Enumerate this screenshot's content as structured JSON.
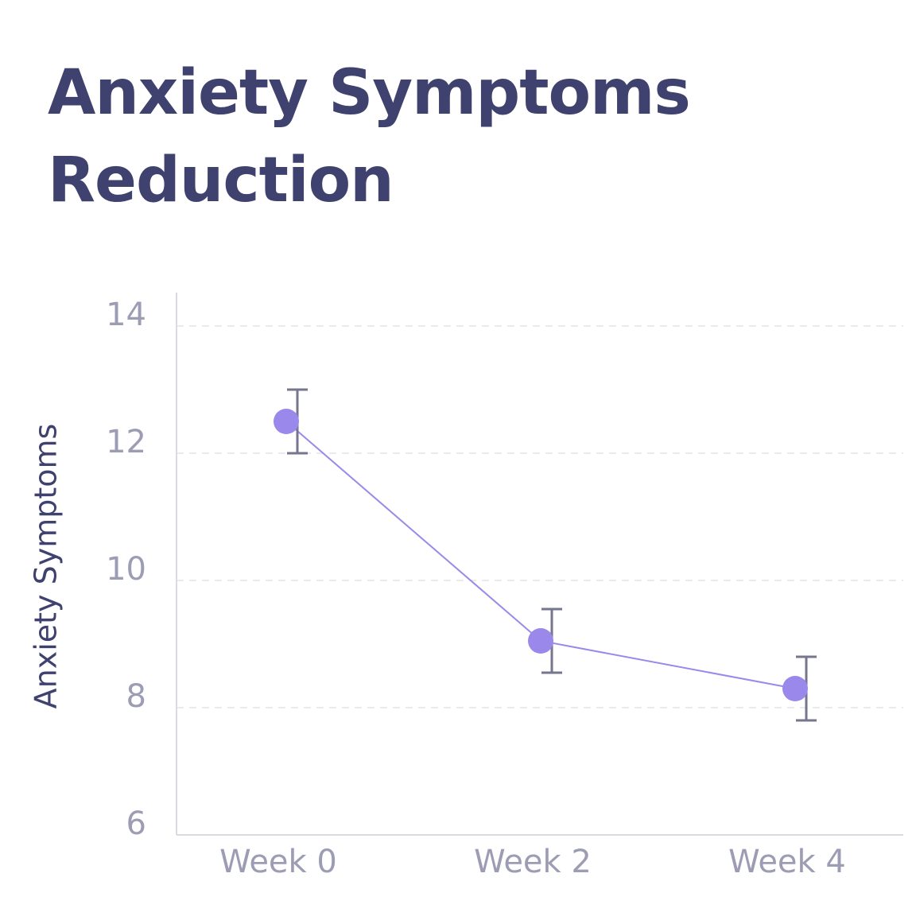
{
  "chart_data": {
    "type": "line",
    "title": "Anxiety Symptoms Reduction",
    "xlabel": "",
    "ylabel": "Anxiety Symptoms",
    "categories": [
      "Week 0",
      "Week 2",
      "Week 4"
    ],
    "series": [
      {
        "values": [
          12.5,
          9.05,
          8.3
        ],
        "error_low": [
          12.0,
          8.55,
          7.8
        ],
        "error_high": [
          13.0,
          9.55,
          8.8
        ]
      }
    ],
    "ylim": [
      6,
      14.5
    ],
    "yticks": [
      "6",
      "8",
      "10",
      "12",
      "14"
    ],
    "grid": true,
    "legend": "none"
  },
  "colors": {
    "title": "#3f416e",
    "axis_title": "#3f416e",
    "tick_label": "#9c9cb4",
    "line": "#9a88ea",
    "marker": "#9a88ea",
    "error_bar": "#76768e",
    "grid": "#e4e4ea",
    "axis": "#dadae2"
  }
}
